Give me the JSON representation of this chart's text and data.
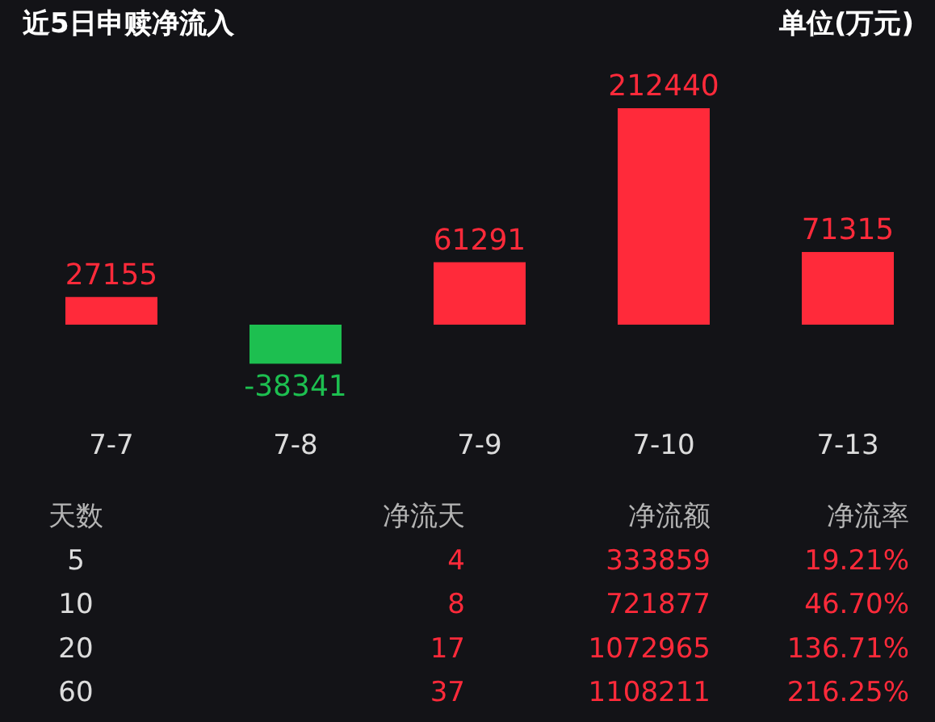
{
  "chart_data": [
    {
      "type": "bar",
      "title": "近5日申赎净流入",
      "ylabel": "单位(万元)",
      "categories": [
        "7-7",
        "7-8",
        "7-9",
        "7-10",
        "7-13"
      ],
      "values": [
        27155,
        -38341,
        61291,
        212440,
        71315
      ],
      "colors": [
        "#ff2a3a",
        "#1dbf50",
        "#ff2a3a",
        "#ff2a3a",
        "#ff2a3a"
      ],
      "data_labels": true
    },
    {
      "type": "other",
      "categories": [
        "天数",
        "净流天",
        "净流额",
        "净流率"
      ],
      "cell_labels": [
        [
          "5",
          "4",
          "333859",
          "19.21%"
        ],
        [
          "10",
          "8",
          "721877",
          "46.70%"
        ],
        [
          "20",
          "17",
          "1072965",
          "136.71%"
        ],
        [
          "60",
          "37",
          "1108211",
          "216.25%"
        ]
      ]
    }
  ]
}
